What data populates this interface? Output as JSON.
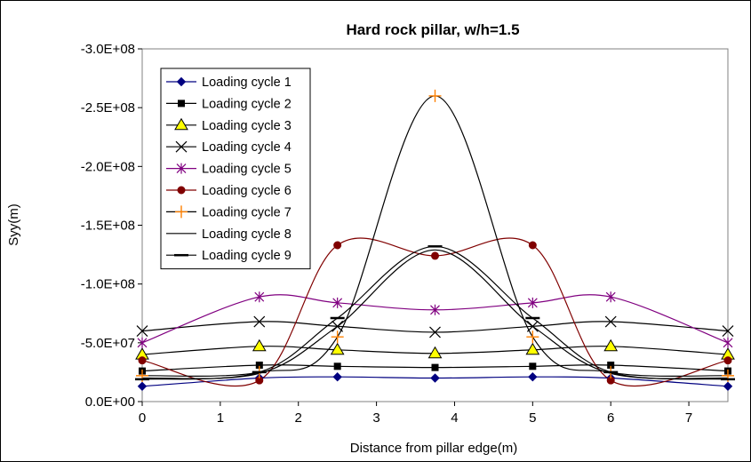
{
  "chart_data": {
    "type": "line",
    "title": "Hard rock pillar, w/h=1.5",
    "xlabel": "Distance from pillar edge(m)",
    "ylabel": "Syy(m)",
    "xlim": [
      0,
      7.5
    ],
    "ylim": [
      0,
      -300000000
    ],
    "y_inverted": true,
    "grid": false,
    "legend_position": "top-left",
    "x_ticks": [
      0,
      1,
      2,
      3,
      4,
      5,
      6,
      7
    ],
    "x_tick_labels": [
      "0",
      "1",
      "2",
      "3",
      "4",
      "5",
      "6",
      "7"
    ],
    "y_ticks": [
      0,
      -50000000,
      -100000000,
      -150000000,
      -200000000,
      -250000000,
      -300000000
    ],
    "y_tick_labels": [
      "0.0E+00",
      "-5.0E+07",
      "-1.0E+08",
      "-1.5E+08",
      "-2.0E+08",
      "-2.5E+08",
      "-3.0E+08"
    ],
    "series": [
      {
        "name": "Loading cycle 1",
        "color": "#000080",
        "marker": "diamond",
        "x": [
          0,
          1.5,
          2.5,
          3.75,
          5,
          6,
          7.5
        ],
        "y": [
          -13000000,
          -20000000,
          -21000000,
          -20000000,
          -21000000,
          -20000000,
          -13000000
        ]
      },
      {
        "name": "Loading cycle 2",
        "color": "#000000",
        "marker": "square",
        "x": [
          0,
          1.5,
          2.5,
          3.75,
          5,
          6,
          7.5
        ],
        "y": [
          -26000000,
          -31000000,
          -30000000,
          -29000000,
          -30000000,
          -31000000,
          -26000000
        ]
      },
      {
        "name": "Loading cycle 3",
        "color": "#000000",
        "marker": "triangle",
        "x": [
          0,
          1.5,
          2.5,
          3.75,
          5,
          6,
          7.5
        ],
        "y": [
          -40000000,
          -47000000,
          -44000000,
          -41000000,
          -44000000,
          -47000000,
          -40000000
        ]
      },
      {
        "name": "Loading cycle 4",
        "color": "#000000",
        "marker": "x",
        "x": [
          0,
          1.5,
          2.5,
          3.75,
          5,
          6,
          7.5
        ],
        "y": [
          -60000000,
          -68000000,
          -64000000,
          -59000000,
          -64000000,
          -68000000,
          -60000000
        ]
      },
      {
        "name": "Loading cycle 5",
        "color": "#800080",
        "marker": "star",
        "x": [
          0,
          1.5,
          2.5,
          3.75,
          5,
          6,
          7.5
        ],
        "y": [
          -50000000,
          -89000000,
          -84000000,
          -78000000,
          -84000000,
          -89000000,
          -50000000
        ]
      },
      {
        "name": "Loading cycle 6",
        "color": "#800000",
        "marker": "circle",
        "x": [
          0,
          1.5,
          2.5,
          3.75,
          5,
          6,
          7.5
        ],
        "y": [
          -35000000,
          -18000000,
          -133000000,
          -124000000,
          -133000000,
          -18000000,
          -35000000
        ]
      },
      {
        "name": "Loading cycle 7",
        "color": "#000000",
        "marker": "plus",
        "x": [
          0,
          1.5,
          2.5,
          3.75,
          5,
          6,
          7.5
        ],
        "y": [
          -22000000,
          -25000000,
          -55000000,
          -260000000,
          -55000000,
          -25000000,
          -22000000
        ]
      },
      {
        "name": "Loading cycle 8",
        "color": "#000000",
        "marker": "none",
        "x": [
          0,
          1.5,
          2.5,
          3.75,
          5,
          6,
          7.5
        ],
        "y": [
          -20000000,
          -24000000,
          -64000000,
          -129000000,
          -64000000,
          -24000000,
          -20000000
        ]
      },
      {
        "name": "Loading cycle 9",
        "color": "#000000",
        "marker": "dash",
        "x": [
          0,
          1.5,
          2.5,
          3.75,
          5,
          6,
          7.5
        ],
        "y": [
          -19000000,
          -25000000,
          -71000000,
          -132000000,
          -71000000,
          -25000000,
          -19000000
        ]
      }
    ]
  },
  "colors": {
    "marker_fill_triangle": "#ffff00",
    "marker_plus": "#ff8000",
    "marker_circle": "#800000"
  }
}
